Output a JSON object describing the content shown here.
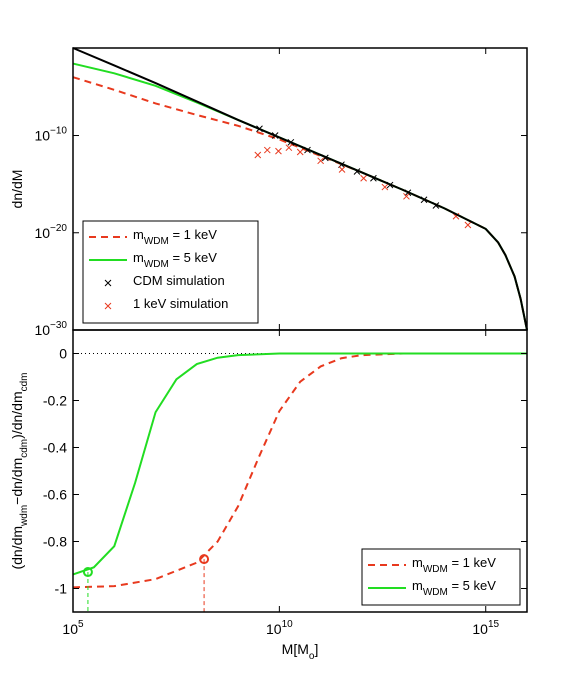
{
  "chart_data": [
    {
      "type": "line",
      "xscale": "log",
      "yscale": "log",
      "ylabel": "dn/dM",
      "xlim": [
        100000.0,
        1e+16
      ],
      "xticks": [
        100000.0,
        10000000000.0,
        1000000000000000.0
      ],
      "ylim": [
        1e-30,
        0.1
      ],
      "yticks": [
        {
          "value": 1e-10,
          "label": "10^−10"
        },
        {
          "value": 1e-20,
          "label": "10^−20"
        },
        {
          "value": 1e-30,
          "label": "10^−30"
        }
      ],
      "legend": "lower left",
      "series": [
        {
          "name": "m_WDM = 1 keV",
          "color": "#e8391e",
          "style": "dashed",
          "x": [
            100000.0,
            1000000.0,
            10000000.0,
            100000000.0,
            1000000000.0,
            10000000000.0,
            100000000000.0,
            1000000000000.0,
            10000000000000.0,
            100000000000000.0,
            1000000000000000.0,
            2000000000000000.0,
            3000000000000000.0,
            5000000000000000.0,
            7000000000000000.0,
            1e+16
          ],
          "values": [
            0.0001,
            5e-06,
            2e-07,
            1.3e-08,
            1e-09,
            4e-11,
            8e-13,
            1.6e-14,
            2.5e-16,
            3.2e-18,
            2.5e-20,
            1e-21,
            5e-23,
            3.2e-25,
            1.6e-27,
            1e-30
          ]
        },
        {
          "name": "m_WDM = 5 keV",
          "color": "#22dd22",
          "style": "solid",
          "x": [
            100000.0,
            1000000.0,
            10000000.0,
            100000000.0,
            1000000000.0,
            10000000000.0,
            100000000000.0,
            1000000000000.0,
            10000000000000.0,
            100000000000000.0,
            1000000000000000.0,
            2000000000000000.0,
            3000000000000000.0,
            5000000000000000.0,
            7000000000000000.0,
            1e+16
          ],
          "values": [
            0.0025,
            0.00025,
            1.3e-05,
            2.5e-07,
            4e-09,
            6.3e-11,
            1e-12,
            1.6e-14,
            2.5e-16,
            3.2e-18,
            2.5e-20,
            1e-21,
            5e-23,
            3.2e-25,
            1.6e-27,
            1e-30
          ]
        },
        {
          "name": "CDM simulation",
          "color": "#000000",
          "marker": "x",
          "x": [
            3300000000.0,
            7900000000.0,
            19000000000.0,
            48000000000.0,
            130000000000.0,
            320000000000.0,
            760000000000.0,
            1900000000000.0,
            4800000000000.0,
            13000000000000.0,
            32000000000000.0,
            62000000000000.0
          ],
          "values": [
            5e-10,
            1e-10,
            2e-11,
            3.2e-12,
            5e-13,
            1e-13,
            2e-14,
            4e-15,
            8e-16,
            1.3e-16,
            2.5e-17,
            6.3e-18
          ]
        },
        {
          "name": "1 keV simulation",
          "color": "#e8391e",
          "marker": "x",
          "x": [
            3000000000.0,
            5100000000.0,
            9500000000.0,
            17000000000.0,
            32000000000.0,
            100000000000.0,
            330000000000.0,
            1100000000000.0,
            3600000000000.0,
            12000000000000.0,
            190000000000000.0,
            370000000000000.0
          ],
          "values": [
            1e-12,
            3.2e-12,
            2.5e-12,
            5.6e-12,
            2e-12,
            2.5e-13,
            3.2e-14,
            4e-15,
            5e-16,
            5.6e-17,
            5e-19,
            6.3e-20
          ]
        },
        {
          "color": "#000000",
          "style": "solid",
          "x": [
            100000.0,
            1000000.0,
            10000000.0,
            100000000.0,
            1000000000.0,
            10000000000.0,
            100000000000.0,
            1000000000000.0,
            10000000000000.0,
            100000000000000.0,
            1000000000000000.0,
            2000000000000000.0,
            3000000000000000.0,
            5000000000000000.0,
            7000000000000000.0,
            1e+16
          ],
          "values": [
            0.1,
            0.0016,
            2.5e-05,
            3.2e-07,
            4e-09,
            6.3e-11,
            1e-12,
            1.6e-14,
            2.5e-16,
            3.2e-18,
            2.5e-20,
            1e-21,
            5e-23,
            3.2e-25,
            1.6e-27,
            1e-30
          ]
        }
      ]
    },
    {
      "type": "line",
      "xscale": "log",
      "yscale": "linear",
      "xlabel": "M[M_o]",
      "ylabel": "(dn/dm_wdm−dn/dm_cdm)/dn/dm_cdm",
      "xlim": [
        100000.0,
        1e+16
      ],
      "xticks": [
        {
          "value": 100000.0,
          "label": "10^5"
        },
        {
          "value": 10000000000.0,
          "label": "10^10"
        },
        {
          "value": 1000000000000000.0,
          "label": "10^15"
        }
      ],
      "ylim": [
        -1.1,
        0.1
      ],
      "yticks": [
        0,
        -0.2,
        -0.4,
        -0.6,
        -0.8,
        -1
      ],
      "zero_line": true,
      "legend": "lower right",
      "series": [
        {
          "name": "m_WDM = 1 keV",
          "color": "#e8391e",
          "style": "dashed",
          "x": [
            100000.0,
            1000000.0,
            10000000.0,
            100000000.0,
            320000000.0,
            1000000000.0,
            3200000000.0,
            10000000000.0,
            32000000000.0,
            100000000000.0,
            320000000000.0,
            1000000000000.0,
            10000000000000.0,
            1e+16
          ],
          "values": [
            -0.995,
            -0.99,
            -0.96,
            -0.89,
            -0.8,
            -0.65,
            -0.44,
            -0.245,
            -0.12,
            -0.055,
            -0.02,
            -0.007,
            0,
            0
          ],
          "point": {
            "x": 150000000.0,
            "value": -0.875
          }
        },
        {
          "name": "m_WDM = 5 keV",
          "color": "#22dd22",
          "style": "solid",
          "x": [
            100000.0,
            320000.0,
            1000000.0,
            3200000.0,
            10000000.0,
            32000000.0,
            100000000.0,
            320000000.0,
            1000000000.0,
            10000000000.0,
            1e+16
          ],
          "values": [
            -0.94,
            -0.91,
            -0.82,
            -0.55,
            -0.25,
            -0.11,
            -0.045,
            -0.018,
            -0.007,
            0,
            0
          ],
          "point": {
            "x": 230000.0,
            "value": -0.93
          }
        }
      ]
    }
  ]
}
